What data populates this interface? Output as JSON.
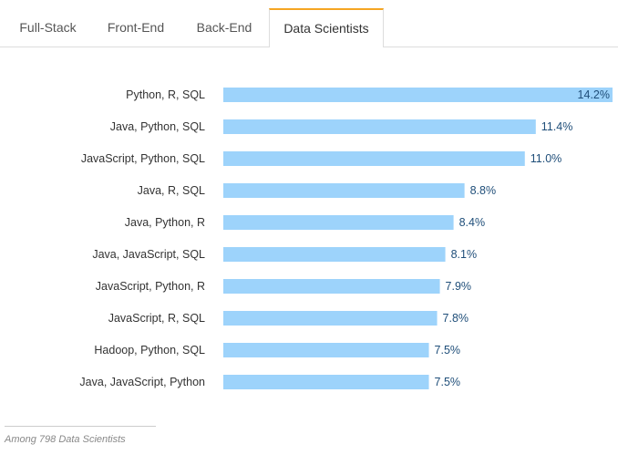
{
  "tabs": [
    {
      "label": "Full-Stack",
      "active": false
    },
    {
      "label": "Front-End",
      "active": false
    },
    {
      "label": "Back-End",
      "active": false
    },
    {
      "label": "Data Scientists",
      "active": true
    }
  ],
  "colors": {
    "bar": "#9dd3fb",
    "active_tab_accent": "#f5a623",
    "value_label": "#1f4e79"
  },
  "chart_data": {
    "type": "bar",
    "orientation": "horizontal",
    "categories": [
      "Python, R, SQL",
      "Java, Python, SQL",
      "JavaScript, Python, SQL",
      "Java, R, SQL",
      "Java, Python, R",
      "Java, JavaScript, SQL",
      "JavaScript, Python, R",
      "JavaScript, R, SQL",
      "Hadoop, Python, SQL",
      "Java, JavaScript, Python"
    ],
    "values": [
      14.2,
      11.4,
      11.0,
      8.8,
      8.4,
      8.1,
      7.9,
      7.8,
      7.5,
      7.5
    ],
    "value_labels": [
      "14.2%",
      "11.4%",
      "11.0%",
      "8.8%",
      "8.4%",
      "8.1%",
      "7.9%",
      "7.8%",
      "7.5%",
      "7.5%"
    ],
    "xlim": [
      0,
      14.2
    ],
    "grid": false
  },
  "footnote": "Among 798 Data Scientists"
}
